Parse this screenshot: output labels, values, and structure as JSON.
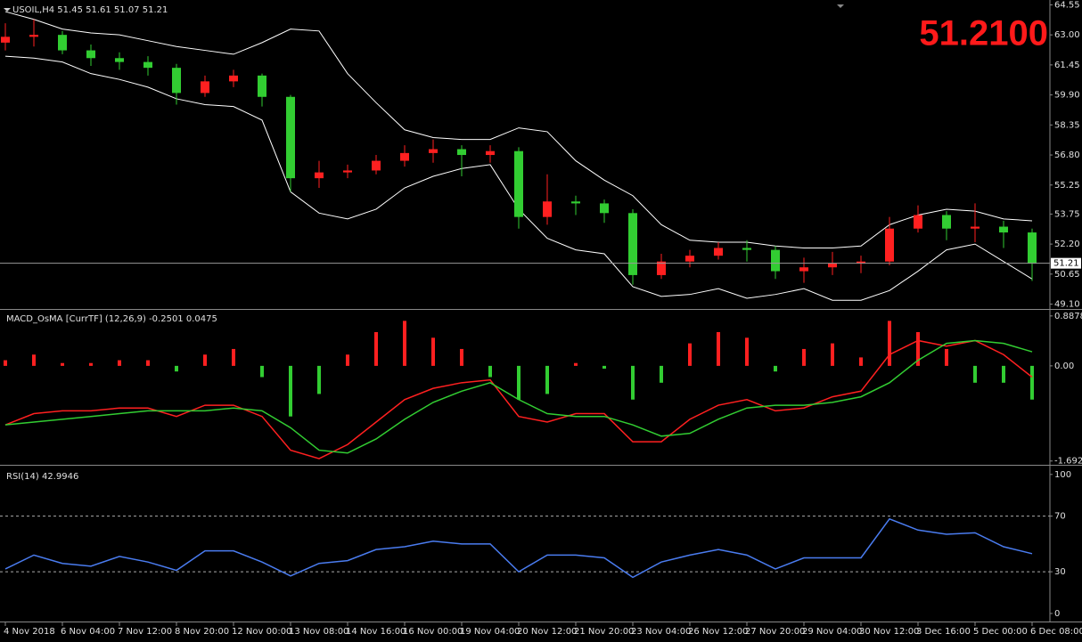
{
  "chart_data": [
    {
      "type": "candlestick",
      "title": "USOIL,H4  51.45 51.61 51.07 51.21",
      "bid_display": "51.2100",
      "price_line": 51.21,
      "up_color": "#ff2020",
      "down_color": "#32cd32",
      "categories": [
        "4 Nov 2018",
        null,
        "6 Nov 04:00",
        null,
        "7 Nov 12:00",
        null,
        "8 Nov 20:00",
        null,
        "12 Nov 00:00",
        null,
        "13 Nov 08:00",
        null,
        "14 Nov 16:00",
        null,
        "16 Nov 00:00",
        null,
        "19 Nov 04:00",
        null,
        "20 Nov 12:00",
        null,
        "21 Nov 20:00",
        null,
        "23 Nov 04:00",
        null,
        "26 Nov 12:00",
        null,
        "27 Nov 20:00",
        null,
        "29 Nov 04:00",
        null,
        "30 Nov 12:00",
        null,
        "3 Dec 16:00",
        null,
        "5 Dec 00:00",
        null,
        "6 Dec 08:00"
      ],
      "open": [
        62.6,
        62.9,
        63.0,
        62.2,
        61.8,
        61.6,
        61.3,
        60.0,
        60.6,
        60.9,
        59.8,
        55.6,
        55.9,
        56.0,
        56.5,
        56.9,
        57.1,
        56.8,
        57.0,
        53.6,
        54.4,
        54.3,
        53.8,
        50.6,
        51.3,
        51.6,
        52.0,
        51.9,
        50.8,
        51.0,
        51.2,
        51.3,
        53.0,
        53.7,
        53.0,
        53.1,
        52.8
      ],
      "high": [
        63.6,
        63.8,
        63.2,
        62.5,
        62.1,
        61.9,
        61.5,
        60.9,
        61.2,
        61.0,
        59.9,
        56.5,
        56.3,
        56.8,
        57.3,
        57.6,
        57.3,
        57.3,
        57.2,
        55.8,
        54.7,
        54.5,
        54.0,
        51.7,
        51.9,
        52.3,
        52.4,
        52.1,
        51.5,
        51.8,
        51.6,
        53.6,
        54.2,
        53.9,
        54.3,
        53.4,
        53.0
      ],
      "low": [
        62.2,
        62.4,
        62.0,
        61.4,
        61.2,
        60.9,
        59.4,
        59.8,
        60.3,
        59.3,
        54.9,
        55.1,
        55.6,
        55.8,
        56.2,
        56.4,
        55.7,
        56.4,
        53.0,
        53.2,
        53.7,
        53.3,
        50.1,
        50.4,
        51.0,
        51.4,
        51.3,
        50.4,
        50.2,
        50.6,
        50.7,
        51.1,
        52.8,
        52.4,
        52.3,
        52.0,
        50.3
      ],
      "close": [
        62.9,
        63.0,
        62.2,
        61.8,
        61.6,
        61.3,
        60.0,
        60.6,
        60.9,
        59.8,
        55.6,
        55.9,
        56.0,
        56.5,
        56.9,
        57.1,
        56.8,
        57.0,
        53.6,
        54.4,
        54.3,
        53.8,
        50.6,
        51.3,
        51.6,
        52.0,
        51.9,
        50.8,
        51.0,
        51.2,
        51.3,
        53.0,
        53.7,
        53.0,
        53.1,
        52.8,
        51.21
      ],
      "bands": [
        {
          "color": "#ffffff",
          "values": [
            64.2,
            63.8,
            63.3,
            63.1,
            63.0,
            62.7,
            62.4,
            62.2,
            62.0,
            62.6,
            63.3,
            63.2,
            61.0,
            59.5,
            58.1,
            57.7,
            57.6,
            57.6,
            58.2,
            58.0,
            56.5,
            55.5,
            54.7,
            53.2,
            52.4,
            52.3,
            52.3,
            52.1,
            52.0,
            52.0,
            52.1,
            53.2,
            53.7,
            54.0,
            53.9,
            53.5,
            53.4
          ]
        },
        {
          "color": "#ffffff",
          "values": [
            61.9,
            61.8,
            61.6,
            61.0,
            60.7,
            60.3,
            59.7,
            59.4,
            59.3,
            58.6,
            54.9,
            53.8,
            53.5,
            54.0,
            55.1,
            55.7,
            56.1,
            56.3,
            54.0,
            52.5,
            51.9,
            51.7,
            50.0,
            49.5,
            49.6,
            49.9,
            49.4,
            49.6,
            49.9,
            49.3,
            49.3,
            49.8,
            50.8,
            51.9,
            52.2,
            51.3,
            50.4
          ]
        }
      ],
      "ylim": [
        48.85,
        64.8
      ],
      "yticks": [
        64.55,
        {
          "value": 63.0,
          "label": "63.00"
        },
        61.45,
        {
          "value": 59.9,
          "label": "59.90"
        },
        58.35,
        {
          "value": 56.8,
          "label": "56.80"
        },
        55.25,
        53.75,
        {
          "value": 52.2,
          "label": "52.20"
        },
        50.65,
        {
          "value": 49.1,
          "label": "49.10"
        }
      ]
    },
    {
      "type": "macd",
      "title": "MACD_OsMA [CurrTF] (12,26,9) -0.2501 0.0475",
      "histogram": [
        0.1,
        0.2,
        0.05,
        0.05,
        0.1,
        0.1,
        -0.1,
        0.2,
        0.3,
        -0.2,
        -0.9,
        -0.5,
        0.2,
        0.6,
        0.8,
        0.5,
        0.3,
        -0.2,
        -0.6,
        -0.5,
        0.05,
        -0.05,
        -0.6,
        -0.3,
        0.4,
        0.6,
        0.5,
        -0.1,
        0.3,
        0.4,
        0.15,
        0.8,
        0.6,
        0.3,
        -0.3,
        -0.3,
        -0.6
      ],
      "positive_color": "#ff2020",
      "negative_color": "#32cd32",
      "series": [
        {
          "color": "#ff2020",
          "values": [
            -1.05,
            -0.85,
            -0.8,
            -0.8,
            -0.75,
            -0.75,
            -0.9,
            -0.7,
            -0.7,
            -0.9,
            -1.5,
            -1.65,
            -1.4,
            -1.0,
            -0.6,
            -0.4,
            -0.3,
            -0.25,
            -0.9,
            -1.0,
            -0.85,
            -0.85,
            -1.35,
            -1.35,
            -0.95,
            -0.7,
            -0.6,
            -0.8,
            -0.75,
            -0.55,
            -0.45,
            0.2,
            0.45,
            0.35,
            0.45,
            0.2,
            -0.2
          ]
        },
        {
          "color": "#32cd32",
          "values": [
            -1.05,
            -1.0,
            -0.95,
            -0.9,
            -0.85,
            -0.8,
            -0.8,
            -0.8,
            -0.75,
            -0.8,
            -1.1,
            -1.5,
            -1.55,
            -1.3,
            -0.95,
            -0.65,
            -0.45,
            -0.3,
            -0.6,
            -0.85,
            -0.9,
            -0.9,
            -1.05,
            -1.25,
            -1.2,
            -0.95,
            -0.75,
            -0.7,
            -0.7,
            -0.65,
            -0.55,
            -0.3,
            0.1,
            0.4,
            0.45,
            0.4,
            0.25
          ]
        }
      ],
      "ylim": [
        -1.76,
        0.98
      ],
      "yticks": [
        0.8878,
        {
          "value": 0,
          "label": "0.00"
        },
        -1.6924
      ]
    },
    {
      "type": "line",
      "title": "RSI(14) 42.9946",
      "series": [
        {
          "color": "#4a7cf0",
          "values": [
            32,
            42,
            36,
            34,
            41,
            37,
            31,
            45,
            45,
            37,
            27,
            36,
            38,
            46,
            48,
            52,
            50,
            50,
            30,
            42,
            42,
            40,
            26,
            37,
            42,
            46,
            42,
            32,
            40,
            40,
            40,
            68,
            60,
            57,
            58,
            48,
            43
          ]
        }
      ],
      "levels": [
        70,
        30
      ],
      "ylim": [
        -5.8,
        105
      ],
      "yticks": [
        100,
        70,
        30,
        0
      ]
    }
  ]
}
